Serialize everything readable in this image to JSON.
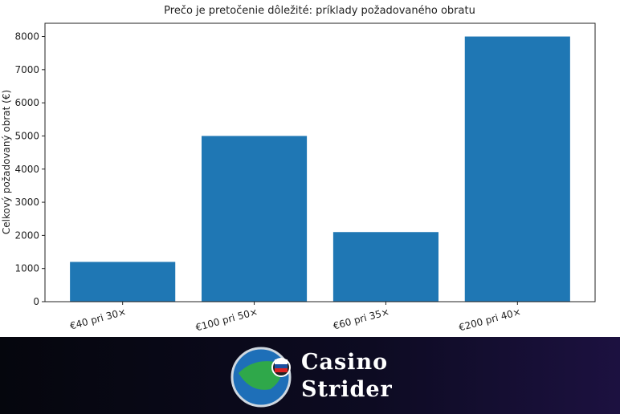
{
  "chart_data": {
    "type": "bar",
    "title": "Prečo je pretočenie dôležité: príklady požadovaného obratu",
    "y_label": "Celkový požadovaný obrat (€)",
    "categories": [
      "€40 pri 30×",
      "€100 pri 50×",
      "€60 pri 35×",
      "€200 pri 40×"
    ],
    "values": [
      1200,
      5000,
      2100,
      8000
    ],
    "color": "#1f77b4",
    "ylim": [
      0,
      8400
    ],
    "yticks": [
      0,
      1000,
      2000,
      3000,
      4000,
      5000,
      6000,
      7000,
      8000
    ],
    "grid": false
  },
  "footer": {
    "brand": [
      "Casino",
      "Strider"
    ]
  }
}
